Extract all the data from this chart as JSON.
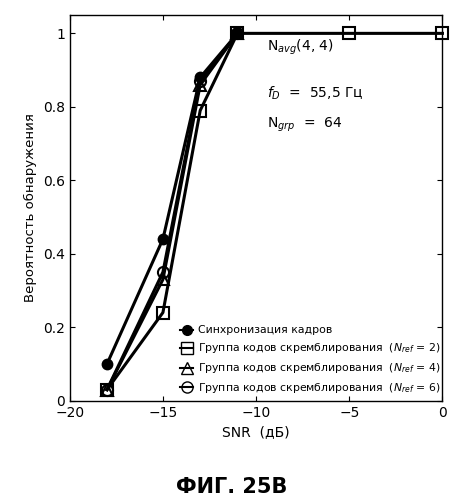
{
  "title": "ФИГ. 25В",
  "xlabel": "SNR  (дБ)",
  "ylabel": "Вероятность обнаружения",
  "xlim": [
    -20,
    0
  ],
  "ylim": [
    0,
    1.05
  ],
  "xticks": [
    -20,
    -15,
    -10,
    -5,
    0
  ],
  "yticks": [
    0,
    0.2,
    0.4,
    0.6,
    0.8,
    1.0
  ],
  "ann1": "N$_\\mathit{avg}$(4, 4)",
  "ann2": "$f_D$  =  55,5 Гц",
  "ann3": "N$_\\mathit{grp}$  =  64",
  "legend_labels": [
    "Синхронизация кадров",
    "Группа кодов скремблирования  ($N_{ref}$ = 2)",
    "Группа кодов скремблирования  ($N_{ref}$ = 4)",
    "Группа кодов скремблирования  ($N_{ref}$ = 6)"
  ],
  "series": [
    {
      "x": [
        -18,
        -15,
        -13,
        -11
      ],
      "y": [
        0.1,
        0.44,
        0.88,
        1.0
      ],
      "marker": "o",
      "markersize": 7,
      "color": "black",
      "fillstyle": "full",
      "linewidth": 2.2
    },
    {
      "x": [
        -18,
        -15,
        -13,
        -11,
        -5,
        0
      ],
      "y": [
        0.03,
        0.24,
        0.79,
        1.0,
        1.0,
        1.0
      ],
      "marker": "s",
      "markersize": 8,
      "color": "black",
      "fillstyle": "none",
      "linewidth": 2.2
    },
    {
      "x": [
        -18,
        -15,
        -13,
        -11
      ],
      "y": [
        0.03,
        0.33,
        0.86,
        1.0
      ],
      "marker": "^",
      "markersize": 8,
      "color": "black",
      "fillstyle": "none",
      "linewidth": 2.2
    },
    {
      "x": [
        -18,
        -15,
        -13,
        -11
      ],
      "y": [
        0.03,
        0.35,
        0.87,
        1.0
      ],
      "marker": "o",
      "markersize": 8,
      "color": "black",
      "fillstyle": "none",
      "linewidth": 2.2
    }
  ],
  "background_color": "#ffffff",
  "figsize": [
    4.63,
    4.99
  ],
  "dpi": 100
}
